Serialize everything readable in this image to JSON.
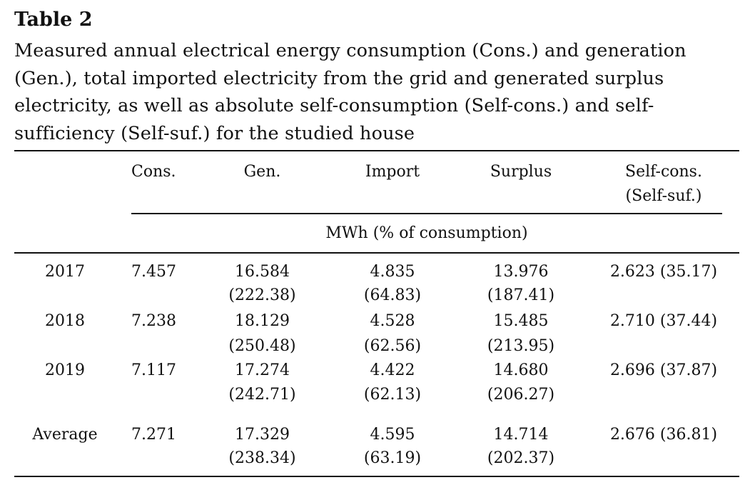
{
  "table": {
    "label": "Table 2",
    "caption": "Measured annual electrical energy consumption (Cons.) and generation (Gen.), total imported electricity from the grid and generated surplus electricity, as well as absolute self-consumption (Self-cons.) and self-sufficiency (Self-suf.) for the studied house",
    "headers": {
      "cons": "Cons.",
      "gen": "Gen.",
      "import": "Import",
      "surplus": "Surplus",
      "selfcons_line1": "Self-cons.",
      "selfcons_line2": "(Self-suf.)"
    },
    "unit_label": "MWh (% of consumption)",
    "rows": [
      {
        "year": "2017",
        "cons": "7.457",
        "gen": "16.584",
        "gen_pct": "(222.38)",
        "import": "4.835",
        "import_pct": "(64.83)",
        "surplus": "13.976",
        "surplus_pct": "(187.41)",
        "selfcons": "2.623 (35.17)"
      },
      {
        "year": "2018",
        "cons": "7.238",
        "gen": "18.129",
        "gen_pct": "(250.48)",
        "import": "4.528",
        "import_pct": "(62.56)",
        "surplus": "15.485",
        "surplus_pct": "(213.95)",
        "selfcons": "2.710 (37.44)"
      },
      {
        "year": "2019",
        "cons": "7.117",
        "gen": "17.274",
        "gen_pct": "(242.71)",
        "import": "4.422",
        "import_pct": "(62.13)",
        "surplus": "14.680",
        "surplus_pct": "(206.27)",
        "selfcons": "2.696 (37.87)"
      },
      {
        "year": "Average",
        "cons": "7.271",
        "gen": "17.329",
        "gen_pct": "(238.34)",
        "import": "4.595",
        "import_pct": "(63.19)",
        "surplus": "14.714",
        "surplus_pct": "(202.37)",
        "selfcons": "2.676 (36.81)"
      }
    ]
  }
}
